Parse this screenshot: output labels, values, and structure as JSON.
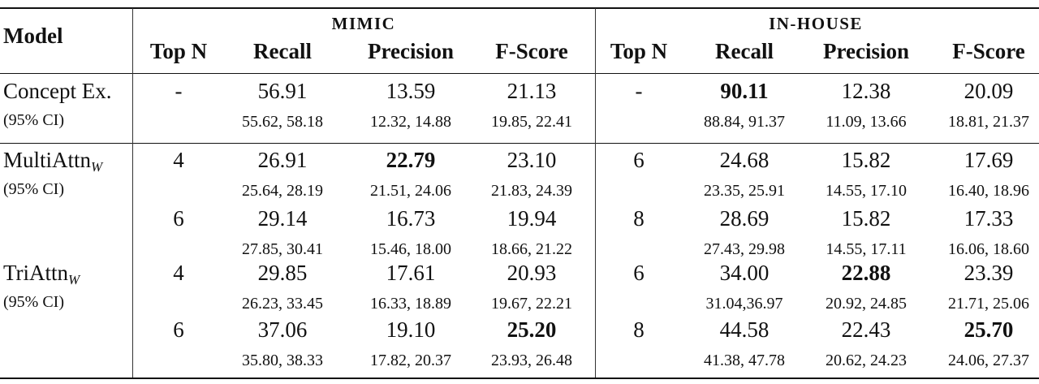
{
  "header": {
    "model": "Model",
    "group_left": "MIMIC",
    "group_right": "IN-HOUSE",
    "columns": [
      "Top N",
      "Recall",
      "Precision",
      "F-Score",
      "Top N",
      "Recall",
      "Precision",
      "F-Score"
    ]
  },
  "rows": [
    {
      "model": "Concept Ex.",
      "model_sub": "",
      "ci_label": "(95% CI)",
      "values": [
        "-",
        "56.91",
        "13.59",
        "21.13",
        "-",
        "90.11",
        "12.38",
        "20.09"
      ],
      "ci": [
        "",
        "55.62, 58.18",
        "12.32, 14.88",
        "19.85, 22.41",
        "",
        "88.84, 91.37",
        "11.09, 13.66",
        "18.81, 21.37"
      ],
      "bold": [
        5
      ]
    },
    {
      "model": "MultiAttn",
      "model_sub": "W",
      "ci_label": "(95% CI)",
      "values": [
        "4",
        "26.91",
        "22.79",
        "23.10",
        "6",
        "24.68",
        "15.82",
        "17.69"
      ],
      "ci": [
        "",
        "25.64, 28.19",
        "21.51, 24.06",
        "21.83, 24.39",
        "",
        "23.35, 25.91",
        "14.55, 17.10",
        "16.40, 18.96"
      ],
      "bold": [
        2
      ]
    },
    {
      "model": "",
      "model_sub": "",
      "ci_label": "",
      "values": [
        "6",
        "29.14",
        "16.73",
        "19.94",
        "8",
        "28.69",
        "15.82",
        "17.33"
      ],
      "ci": [
        "",
        "27.85, 30.41",
        "15.46, 18.00",
        "18.66, 21.22",
        "",
        "27.43, 29.98",
        "14.55, 17.11",
        "16.06, 18.60"
      ],
      "bold": []
    },
    {
      "model": "TriAttn",
      "model_sub": "W",
      "ci_label": "(95% CI)",
      "values": [
        "4",
        "29.85",
        "17.61",
        "20.93",
        "6",
        "34.00",
        "22.88",
        "23.39"
      ],
      "ci": [
        "",
        "26.23, 33.45",
        "16.33, 18.89",
        "19.67, 22.21",
        "",
        "31.04,36.97",
        "20.92, 24.85",
        "21.71, 25.06"
      ],
      "bold": [
        6
      ]
    },
    {
      "model": "",
      "model_sub": "",
      "ci_label": "",
      "values": [
        "6",
        "37.06",
        "19.10",
        "25.20",
        "8",
        "44.58",
        "22.43",
        "25.70"
      ],
      "ci": [
        "",
        "35.80, 38.33",
        "17.82, 20.37",
        "23.93, 26.48",
        "",
        "41.38, 47.78",
        "20.62, 24.23",
        "24.06, 27.37"
      ],
      "bold": [
        3,
        7
      ]
    }
  ]
}
